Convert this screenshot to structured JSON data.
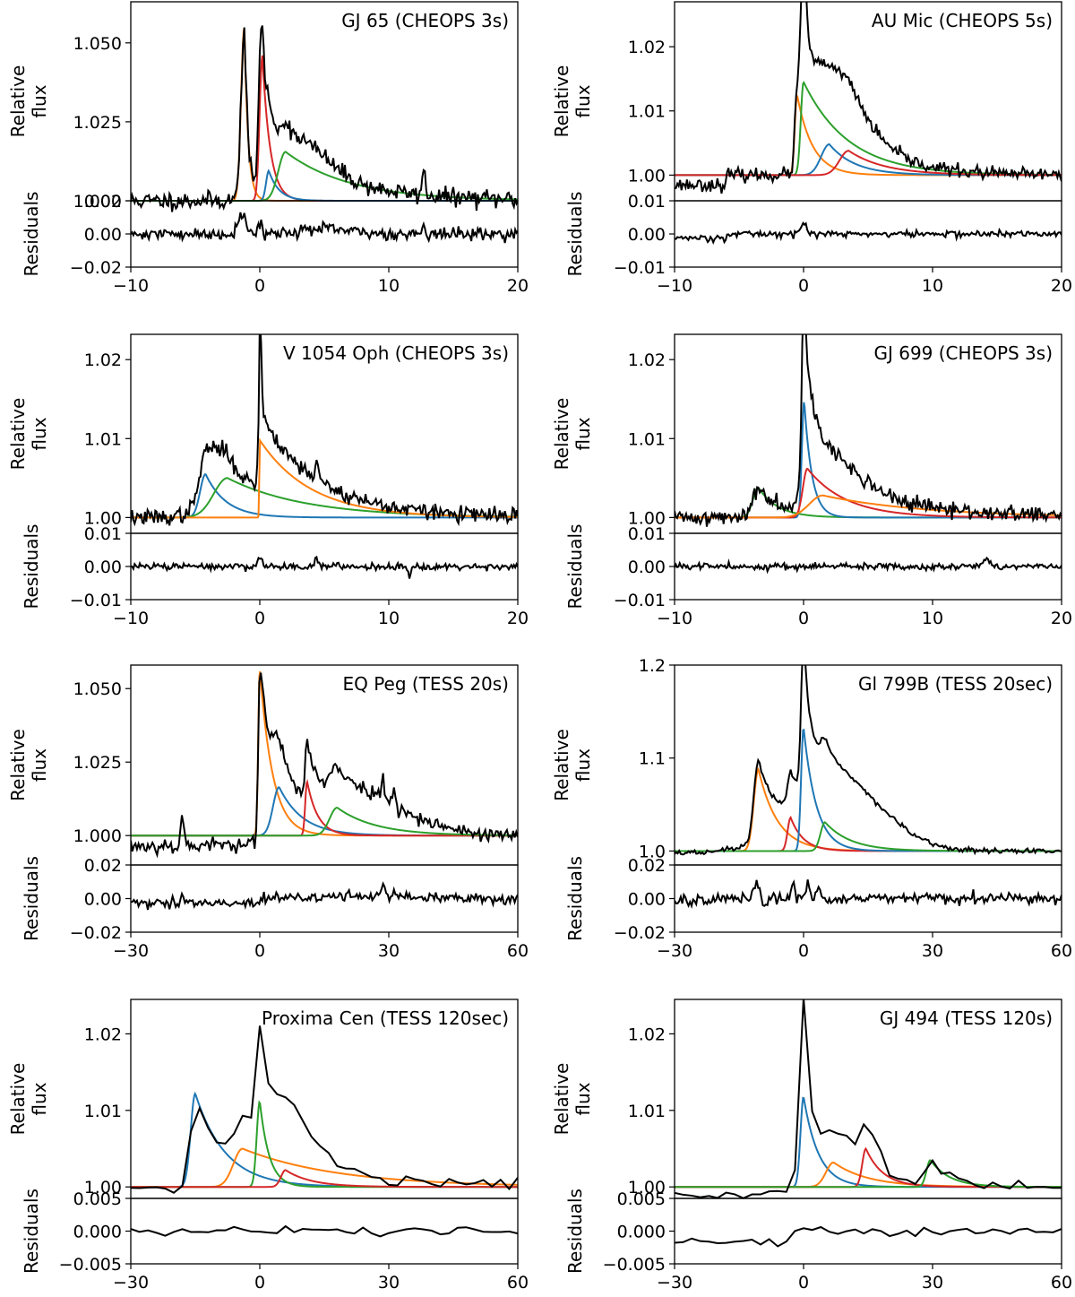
{
  "palette": {
    "blue": "#1f77b4",
    "orange": "#ff7f0e",
    "green": "#2ca02c",
    "red": "#d62728",
    "data": "#000000"
  },
  "labels": {
    "flux": [
      "Relative",
      "flux"
    ],
    "residuals": "Residuals"
  },
  "chart_data": [
    {
      "type": "line",
      "title": "GJ 65 (CHEOPS 3s)",
      "xlim": [
        -10,
        20
      ],
      "xticks": [
        -10,
        0,
        10,
        20
      ],
      "ylim": [
        1.0,
        1.063
      ],
      "yticks": [
        1.0,
        1.025,
        1.05
      ],
      "ytick_labels": [
        "1.000",
        "1.025",
        "1.050"
      ],
      "resid_ylim": [
        -0.02,
        0.02
      ],
      "resid_ticks": [
        -0.02,
        0.0,
        0.02
      ],
      "resid_tick_labels": [
        "−0.02",
        "0.00",
        "0.02"
      ],
      "baseline": 1.0,
      "noise": 0.0014,
      "resid_noise": 0.0018,
      "seed": 11,
      "data_start": -10,
      "npts": 300,
      "components": [
        {
          "color": "orange",
          "t0": -1.2,
          "amp": 0.055,
          "rise": 0.35,
          "decay": 0.3
        },
        {
          "color": "red",
          "t0": 0.2,
          "amp": 0.046,
          "rise": 0.3,
          "decay": 0.6
        },
        {
          "color": "blue",
          "t0": 0.7,
          "amp": 0.0095,
          "rise": 0.3,
          "decay": 0.8
        },
        {
          "color": "green",
          "t0": 2.0,
          "amp": 0.0155,
          "rise": 0.8,
          "decay": 5.0
        }
      ],
      "spikes": [
        {
          "t": 0.0,
          "a": 0.015,
          "w": 0.15
        },
        {
          "t": 12.7,
          "a": 0.008,
          "w": 0.12
        }
      ],
      "bumps": [
        {
          "t": 3.5,
          "a": 0.007,
          "w": 2.0
        }
      ],
      "resid_spikes": [
        {
          "t": -1.4,
          "a": 0.012,
          "w": 0.3
        },
        {
          "t": 0.0,
          "a": 0.007,
          "w": 0.15
        },
        {
          "t": 12.7,
          "a": 0.007,
          "w": 0.12
        }
      ],
      "resid_bumps": [
        {
          "t": 4.8,
          "a": 0.003,
          "w": 2.0
        }
      ],
      "resid_pre": 0
    },
    {
      "type": "line",
      "title": "AU Mic (CHEOPS 5s)",
      "xlim": [
        -10,
        20
      ],
      "xticks": [
        -10,
        0,
        10,
        20
      ],
      "ylim": [
        0.996,
        1.027
      ],
      "yticks": [
        1.0,
        1.01,
        1.02
      ],
      "ytick_labels": [
        "1.00",
        "1.01",
        "1.02"
      ],
      "resid_ylim": [
        -0.01,
        0.01
      ],
      "resid_ticks": [
        -0.01,
        0.0,
        0.01
      ],
      "resid_tick_labels": [
        "−0.01",
        "0.00",
        "0.01"
      ],
      "baseline": 1.0,
      "noise": 0.0005,
      "resid_noise": 0.0005,
      "seed": 23,
      "data_start": -10,
      "npts": 280,
      "pre_offset": -0.0015,
      "pre_end": -6,
      "components": [
        {
          "color": "orange",
          "t0": -0.5,
          "amp": 0.0125,
          "rise": 0.25,
          "decay": 1.2
        },
        {
          "color": "green",
          "t0": 0.0,
          "amp": 0.0145,
          "rise": 0.3,
          "decay": 3.5
        },
        {
          "color": "blue",
          "t0": 2.0,
          "amp": 0.0048,
          "rise": 0.9,
          "decay": 2.0
        },
        {
          "color": "red",
          "t0": 3.5,
          "amp": 0.0038,
          "rise": 1.0,
          "decay": 2.8
        }
      ],
      "spikes": [
        {
          "t": 0.0,
          "a": 0.011,
          "w": 0.2
        }
      ],
      "bumps": [
        {
          "t": 3.2,
          "a": 0.003,
          "w": 1.8
        }
      ],
      "resid_spikes": [
        {
          "t": 0.0,
          "a": 0.0035,
          "w": 0.2
        }
      ],
      "resid_bumps": [],
      "resid_pre": -0.0012,
      "resid_pre_end": -6
    },
    {
      "type": "line",
      "title": "V 1054 Oph (CHEOPS 3s)",
      "xlim": [
        -10,
        20
      ],
      "xticks": [
        -10,
        0,
        10,
        20
      ],
      "ylim": [
        0.998,
        1.0232
      ],
      "yticks": [
        1.0,
        1.01,
        1.02
      ],
      "ytick_labels": [
        "1.00",
        "1.01",
        "1.02"
      ],
      "resid_ylim": [
        -0.01,
        0.01
      ],
      "resid_ticks": [
        -0.01,
        0.0,
        0.01
      ],
      "resid_tick_labels": [
        "−0.01",
        "0.00",
        "0.01"
      ],
      "baseline": 1.0,
      "noise": 0.0005,
      "resid_noise": 0.0005,
      "seed": 37,
      "data_start": -10,
      "npts": 300,
      "components": [
        {
          "color": "blue",
          "t0": -4.2,
          "amp": 0.0055,
          "rise": 0.6,
          "decay": 1.6
        },
        {
          "color": "green",
          "t0": -2.5,
          "amp": 0.005,
          "rise": 1.5,
          "decay": 6.0
        },
        {
          "color": "orange",
          "t0": 0.0,
          "amp": 0.0098,
          "rise": 0.05,
          "decay": 4.0
        }
      ],
      "spikes": [
        {
          "t": 0.0,
          "a": 0.012,
          "w": 0.12
        },
        {
          "t": 4.4,
          "a": 0.0025,
          "w": 0.12
        }
      ],
      "bumps": [
        {
          "t": -3.8,
          "a": 0.002,
          "w": 1.2
        }
      ],
      "resid_spikes": [
        {
          "t": 0.0,
          "a": 0.003,
          "w": 0.15
        },
        {
          "t": 4.4,
          "a": 0.003,
          "w": 0.12
        },
        {
          "t": 11.6,
          "a": -0.0025,
          "w": 0.12
        }
      ],
      "resid_bumps": [],
      "resid_pre": 0
    },
    {
      "type": "line",
      "title": "GJ 699 (CHEOPS 3s)",
      "xlim": [
        -10,
        20
      ],
      "xticks": [
        -10,
        0,
        10,
        20
      ],
      "ylim": [
        0.998,
        1.0232
      ],
      "yticks": [
        1.0,
        1.01,
        1.02
      ],
      "ytick_labels": [
        "1.00",
        "1.01",
        "1.02"
      ],
      "resid_ylim": [
        -0.01,
        0.01
      ],
      "resid_ticks": [
        -0.01,
        0.0,
        0.01
      ],
      "resid_tick_labels": [
        "−0.01",
        "0.00",
        "0.01"
      ],
      "baseline": 1.0,
      "noise": 0.0005,
      "resid_noise": 0.0005,
      "seed": 41,
      "data_start": -10,
      "npts": 300,
      "components": [
        {
          "color": "green",
          "t0": -3.5,
          "amp": 0.0038,
          "rise": 0.6,
          "decay": 1.5
        },
        {
          "color": "blue",
          "t0": 0.05,
          "amp": 0.0148,
          "rise": 0.25,
          "decay": 0.6
        },
        {
          "color": "red",
          "t0": 0.3,
          "amp": 0.0062,
          "rise": 0.5,
          "decay": 3.0
        },
        {
          "color": "orange",
          "t0": 1.5,
          "amp": 0.0028,
          "rise": 1.5,
          "decay": 8.0
        }
      ],
      "spikes": [
        {
          "t": 0.0,
          "a": 0.007,
          "w": 0.15
        }
      ],
      "bumps": [
        {
          "t": 2.5,
          "a": 0.0022,
          "w": 2.5
        }
      ],
      "resid_spikes": [
        {
          "t": 14.2,
          "a": 0.002,
          "w": 0.3
        }
      ],
      "resid_bumps": [],
      "resid_pre": 0
    },
    {
      "type": "line",
      "title": "EQ Peg (TESS 20s)",
      "xlim": [
        -30,
        60
      ],
      "xticks": [
        -30,
        0,
        30,
        60
      ],
      "ylim": [
        0.99,
        1.058
      ],
      "yticks": [
        1.0,
        1.025,
        1.05
      ],
      "ytick_labels": [
        "1.000",
        "1.025",
        "1.050"
      ],
      "resid_ylim": [
        -0.02,
        0.02
      ],
      "resid_ticks": [
        -0.02,
        0.0,
        0.02
      ],
      "resid_tick_labels": [
        "−0.02",
        "0.00",
        "0.02"
      ],
      "baseline": 1.0,
      "noise": 0.0013,
      "resid_noise": 0.0016,
      "seed": 53,
      "data_start": -30,
      "npts": 250,
      "pre_offset": -0.0035,
      "pre_end": 0,
      "components": [
        {
          "color": "orange",
          "t0": 0.0,
          "amp": 0.057,
          "rise": 0.5,
          "decay": 3.0
        },
        {
          "color": "blue",
          "t0": 4.5,
          "amp": 0.0165,
          "rise": 2.0,
          "decay": 5.5
        },
        {
          "color": "red",
          "t0": 11.0,
          "amp": 0.0185,
          "rise": 0.6,
          "decay": 2.5
        },
        {
          "color": "green",
          "t0": 18.0,
          "amp": 0.0095,
          "rise": 2.5,
          "decay": 9.0
        }
      ],
      "spikes": [
        {
          "t": -18.0,
          "a": 0.01,
          "w": 0.4
        },
        {
          "t": 28.5,
          "a": 0.006,
          "w": 0.4
        },
        {
          "t": 31.0,
          "a": 0.005,
          "w": 0.4
        }
      ],
      "bumps": [
        {
          "t": 22.0,
          "a": 0.011,
          "w": 12.0
        }
      ],
      "resid_spikes": [
        {
          "t": -18.0,
          "a": 0.005,
          "w": 0.4
        },
        {
          "t": 28.5,
          "a": 0.006,
          "w": 0.4
        }
      ],
      "resid_bumps": [
        {
          "t": 25.0,
          "a": 0.002,
          "w": 8.0
        }
      ],
      "resid_pre": -0.003,
      "resid_pre_end": 0
    },
    {
      "type": "line",
      "title": "Gl 799B (TESS 20sec)",
      "xlim": [
        -30,
        60
      ],
      "xticks": [
        -30,
        0,
        30,
        60
      ],
      "ylim": [
        0.985,
        1.2
      ],
      "yticks": [
        1.0,
        1.1,
        1.2
      ],
      "ytick_labels": [
        "1.0",
        "1.1",
        "1.2"
      ],
      "resid_ylim": [
        -0.02,
        0.02
      ],
      "resid_ticks": [
        -0.02,
        0.0,
        0.02
      ],
      "resid_tick_labels": [
        "−0.02",
        "0.00",
        "0.02"
      ],
      "baseline": 1.0,
      "noise": 0.0013,
      "resid_noise": 0.0016,
      "seed": 67,
      "data_start": -30,
      "npts": 250,
      "pre_offset": -0.002,
      "pre_end": -20,
      "components": [
        {
          "color": "orange",
          "t0": -10.5,
          "amp": 0.088,
          "rise": 1.5,
          "decay": 4.5
        },
        {
          "color": "red",
          "t0": -3.0,
          "amp": 0.036,
          "rise": 1.0,
          "decay": 3.0
        },
        {
          "color": "blue",
          "t0": 0.0,
          "amp": 0.133,
          "rise": 0.8,
          "decay": 3.0
        },
        {
          "color": "green",
          "t0": 5.0,
          "amp": 0.031,
          "rise": 1.5,
          "decay": 6.0
        }
      ],
      "spikes": [
        {
          "t": 0.0,
          "a": 0.03,
          "w": 0.5
        }
      ],
      "bumps": [
        {
          "t": 9.0,
          "a": 0.065,
          "w": 10.0
        }
      ],
      "resid_spikes": [
        {
          "t": -11.0,
          "a": 0.008,
          "w": 0.5
        },
        {
          "t": -9.0,
          "a": -0.006,
          "w": 0.5
        },
        {
          "t": -2.5,
          "a": 0.008,
          "w": 0.4
        },
        {
          "t": 1.0,
          "a": 0.009,
          "w": 0.4
        },
        {
          "t": 3.5,
          "a": 0.007,
          "w": 0.4
        }
      ],
      "resid_bumps": [],
      "resid_pre": -0.002,
      "resid_pre_end": -20
    },
    {
      "type": "line",
      "title": "Proxima Cen (TESS 120sec)",
      "xlim": [
        -30,
        60
      ],
      "xticks": [
        -30,
        0,
        30,
        60
      ],
      "ylim": [
        0.9985,
        1.0245
      ],
      "yticks": [
        1.0,
        1.01,
        1.02
      ],
      "ytick_labels": [
        "1.00",
        "1.01",
        "1.02"
      ],
      "resid_ylim": [
        -0.005,
        0.005
      ],
      "resid_ticks": [
        -0.005,
        0.0,
        0.005
      ],
      "resid_tick_labels": [
        "−0.005",
        "0.000",
        "0.005"
      ],
      "baseline": 1.0,
      "noise": 0.0004,
      "resid_noise": 0.0004,
      "seed": 71,
      "data_start": -30,
      "npts": 45,
      "components": [
        {
          "color": "blue",
          "t0": -15.0,
          "amp": 0.0122,
          "rise": 1.5,
          "decay": 7.0
        },
        {
          "color": "orange",
          "t0": -4.0,
          "amp": 0.005,
          "rise": 3.0,
          "decay": 22.0
        },
        {
          "color": "green",
          "t0": 0.0,
          "amp": 0.0112,
          "rise": 1.0,
          "decay": 2.2
        },
        {
          "color": "red",
          "t0": 6.0,
          "amp": 0.0022,
          "rise": 1.5,
          "decay": 6.0
        }
      ],
      "spikes": [],
      "bumps": [
        {
          "t": 6.0,
          "a": 0.0055,
          "w": 6.0
        }
      ],
      "resid_spikes": [],
      "resid_bumps": [],
      "resid_pre": 0
    },
    {
      "type": "line",
      "title": "GJ 494 (TESS 120s)",
      "xlim": [
        -30,
        60
      ],
      "xticks": [
        -30,
        0,
        30,
        60
      ],
      "ylim": [
        0.9985,
        1.0245
      ],
      "yticks": [
        1.0,
        1.01,
        1.02
      ],
      "ytick_labels": [
        "1.00",
        "1.01",
        "1.02"
      ],
      "resid_ylim": [
        -0.005,
        0.005
      ],
      "resid_ticks": [
        -0.005,
        0.0,
        0.005
      ],
      "resid_tick_labels": [
        "−0.005",
        "0.000",
        "0.005"
      ],
      "baseline": 1.0,
      "noise": 0.0004,
      "resid_noise": 0.0004,
      "seed": 83,
      "data_start": -30,
      "npts": 45,
      "pre_offset": -0.001,
      "pre_end": -3,
      "components": [
        {
          "color": "blue",
          "t0": 0.0,
          "amp": 0.0118,
          "rise": 1.0,
          "decay": 3.5
        },
        {
          "color": "orange",
          "t0": 7.0,
          "amp": 0.0032,
          "rise": 2.5,
          "decay": 8.0
        },
        {
          "color": "red",
          "t0": 14.5,
          "amp": 0.005,
          "rise": 1.2,
          "decay": 4.0
        },
        {
          "color": "green",
          "t0": 29.5,
          "amp": 0.0035,
          "rise": 1.3,
          "decay": 4.5
        }
      ],
      "spikes": [
        {
          "t": 0.0,
          "a": 0.011,
          "w": 1.0
        }
      ],
      "bumps": [
        {
          "t": 8.0,
          "a": 0.003,
          "w": 6.0
        }
      ],
      "resid_spikes": [],
      "resid_bumps": [],
      "resid_pre": -0.0015,
      "resid_pre_end": -3
    }
  ]
}
